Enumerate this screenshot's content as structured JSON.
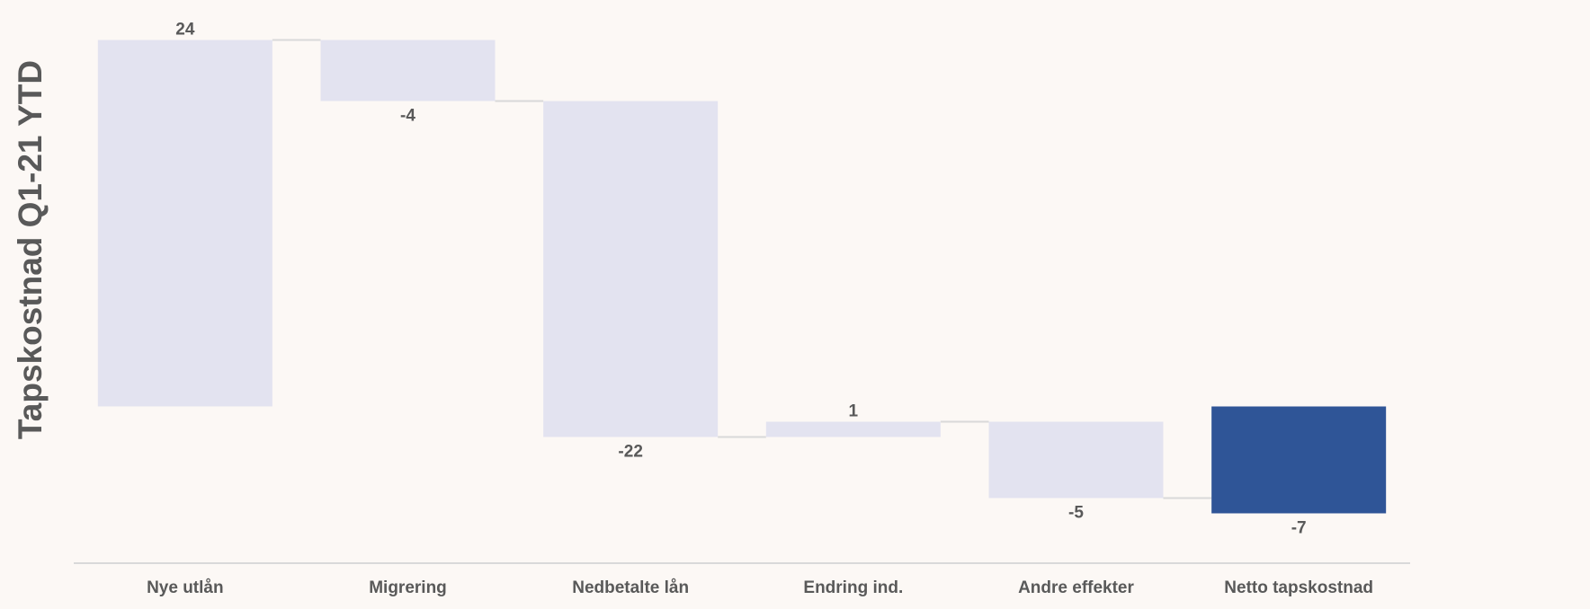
{
  "chart_data": {
    "type": "waterfall",
    "title": "",
    "ylabel": "Tapskostnad Q1-21 YTD",
    "xlabel": "",
    "categories": [
      "Nye utlån",
      "Migrering",
      "Nedbetalte lån",
      "Endring ind.",
      "Andre effekter",
      "Netto tapskostnad"
    ],
    "values": [
      24,
      -4,
      -22,
      1,
      -5,
      -7
    ],
    "value_labels": [
      "24",
      "-4",
      "-22",
      "1",
      "-5",
      "-7"
    ],
    "is_total": [
      false,
      false,
      false,
      false,
      false,
      true
    ],
    "ylim": [
      -10,
      25
    ],
    "grid": false,
    "legend": "none",
    "colors": {
      "total": "#2f5597",
      "change": "#e3e3f0",
      "connector": "#d9d9d9",
      "axis": "#d9d9d9",
      "label": "#595959",
      "background": "#fcf8f5"
    }
  }
}
